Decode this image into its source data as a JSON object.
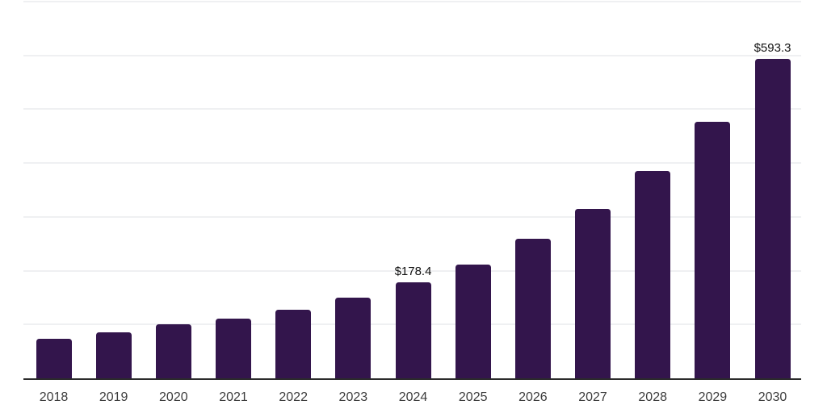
{
  "chart_data": {
    "type": "bar",
    "title": "",
    "xlabel": "",
    "ylabel": "",
    "categories": [
      "2018",
      "2019",
      "2020",
      "2021",
      "2022",
      "2023",
      "2024",
      "2025",
      "2026",
      "2027",
      "2028",
      "2029",
      "2030"
    ],
    "values": [
      74,
      85,
      100,
      111,
      127,
      150,
      178.4,
      212,
      259,
      315,
      385,
      476,
      593.3
    ],
    "value_unit_prefix": "$",
    "data_labels": [
      {
        "category": "2024",
        "category_index": 6,
        "text": "$178.4"
      },
      {
        "category": "2030",
        "category_index": 12,
        "text": "$593.3"
      }
    ],
    "ylim": [
      0,
      700
    ],
    "gridline_step": 100,
    "grid": "horizontal",
    "y_axis_tick_labels_visible": false,
    "legend": "none",
    "colors": {
      "bar": "#33154c",
      "axis_line": "#2b2b2b",
      "gridline": "#eff0f2",
      "tick_label": "#3c3c3c",
      "data_label": "#111111",
      "background": "#ffffff"
    }
  }
}
